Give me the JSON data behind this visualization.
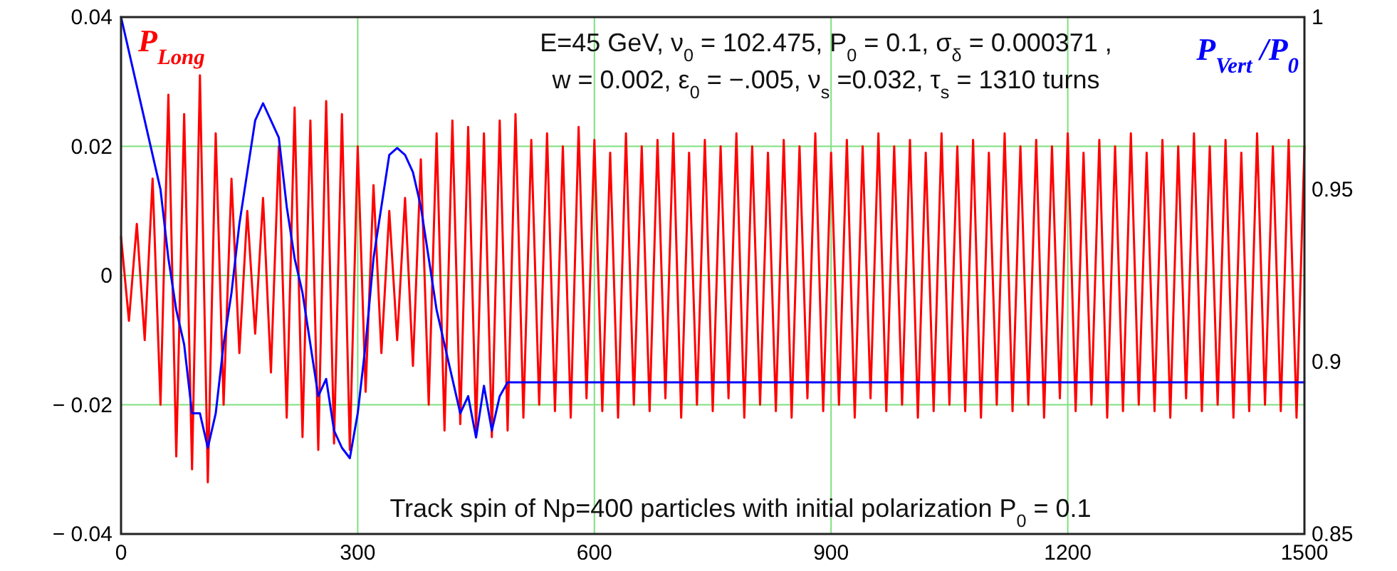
{
  "chart_data": {
    "type": "line",
    "annotations": [
      "E=45 GeV,  ν$_{0}$ = 102.475,  P$_{0}$ = 0.1,  σ$_{δ}$ = 0.000371 ,",
      "w = 0.002,  ε$_{0}$ = −.005,  ν$_{s}$ =0.032, τ$_{s}$ = 1310 turns",
      "Track spin of Np=400 particles with initial polarization P$_{0}$ = 0.1"
    ],
    "xlim": [
      0,
      1500
    ],
    "xticks": [
      0,
      300,
      600,
      900,
      1200,
      1500
    ],
    "ylim": [
      -0.04,
      0.04
    ],
    "yticks": [
      {
        "value": -0.04,
        "label": "− 0.04"
      },
      {
        "value": -0.02,
        "label": "− 0.02"
      },
      0,
      0.02,
      0.04
    ],
    "y2lim": [
      0.85,
      1
    ],
    "y2ticks": [
      0.85,
      0.9,
      0.95,
      1
    ],
    "grid": true,
    "series": [
      {
        "name": "P$_{Long}$",
        "color": "#ff0000",
        "x": [
          0,
          10,
          20,
          30,
          40,
          50,
          60,
          70,
          80,
          90,
          100,
          110,
          120,
          130,
          140,
          150,
          160,
          170,
          180,
          190,
          200,
          210,
          220,
          230,
          240,
          250,
          260,
          270,
          280,
          290,
          300,
          310,
          320,
          330,
          340,
          350,
          360,
          370,
          380,
          390,
          400,
          410,
          420,
          430,
          440,
          450,
          460,
          470,
          480,
          490,
          500,
          510,
          520,
          530,
          540,
          550,
          560,
          570,
          580,
          590,
          600,
          610,
          620,
          630,
          640,
          650,
          660,
          670,
          680,
          690,
          700,
          710,
          720,
          730,
          740,
          750,
          760,
          770,
          780,
          790,
          800,
          810,
          820,
          830,
          840,
          850,
          860,
          870,
          880,
          890,
          900,
          910,
          920,
          930,
          940,
          950,
          960,
          970,
          980,
          990,
          1000,
          1010,
          1020,
          1030,
          1040,
          1050,
          1060,
          1070,
          1080,
          1090,
          1100,
          1110,
          1120,
          1130,
          1140,
          1150,
          1160,
          1170,
          1180,
          1190,
          1200,
          1210,
          1220,
          1230,
          1240,
          1250,
          1260,
          1270,
          1280,
          1290,
          1300,
          1310,
          1320,
          1330,
          1340,
          1350,
          1360,
          1370,
          1380,
          1390,
          1400,
          1410,
          1420,
          1430,
          1440,
          1450,
          1460,
          1470,
          1480,
          1490,
          1500
        ],
        "values": [
          0.006,
          -0.007,
          0.008,
          -0.01,
          0.015,
          -0.02,
          0.028,
          -0.028,
          0.025,
          -0.03,
          0.031,
          -0.032,
          0.022,
          -0.02,
          0.015,
          -0.012,
          0.01,
          -0.009,
          0.012,
          -0.015,
          0.02,
          -0.022,
          0.026,
          -0.025,
          0.024,
          -0.027,
          0.027,
          -0.026,
          0.025,
          -0.027,
          0.02,
          -0.018,
          0.014,
          -0.012,
          0.01,
          -0.01,
          0.012,
          -0.014,
          0.018,
          -0.02,
          0.022,
          -0.024,
          0.024,
          -0.023,
          0.023,
          -0.024,
          0.022,
          -0.025,
          0.024,
          -0.024,
          0.025,
          -0.022,
          0.021,
          -0.02,
          0.022,
          -0.021,
          0.02,
          -0.022,
          0.023,
          -0.019,
          0.021,
          -0.021,
          0.019,
          -0.022,
          0.022,
          -0.02,
          0.02,
          -0.021,
          0.021,
          -0.019,
          0.022,
          -0.022,
          0.019,
          -0.02,
          0.021,
          -0.021,
          0.02,
          -0.019,
          0.022,
          -0.022,
          0.02,
          -0.02,
          0.019,
          -0.021,
          0.021,
          -0.022,
          0.02,
          -0.019,
          0.022,
          -0.021,
          0.019,
          -0.02,
          0.021,
          -0.022,
          0.02,
          -0.019,
          0.022,
          -0.021,
          0.02,
          -0.02,
          0.021,
          -0.022,
          0.019,
          -0.021,
          0.022,
          -0.02,
          0.02,
          -0.021,
          0.021,
          -0.022,
          0.019,
          -0.02,
          0.022,
          -0.021,
          0.02,
          -0.02,
          0.021,
          -0.022,
          0.02,
          -0.019,
          0.022,
          -0.021,
          0.019,
          -0.02,
          0.021,
          -0.022,
          0.02,
          -0.021,
          0.022,
          -0.02,
          0.019,
          -0.021,
          0.021,
          -0.022,
          0.02,
          -0.019,
          0.022,
          -0.021,
          0.02,
          -0.02,
          0.021,
          -0.022,
          0.019,
          -0.021,
          0.022,
          -0.02,
          0.02,
          -0.021,
          0.021,
          -0.022,
          0.02
        ]
      },
      {
        "name": "P$_{Vert}$/P$_{0}$",
        "color": "#0000ff",
        "axis": "y2",
        "x": [
          0,
          10,
          20,
          30,
          40,
          50,
          60,
          70,
          80,
          90,
          100,
          110,
          120,
          130,
          140,
          150,
          160,
          170,
          180,
          190,
          200,
          210,
          220,
          230,
          240,
          250,
          260,
          270,
          280,
          290,
          300,
          310,
          320,
          330,
          340,
          350,
          360,
          370,
          380,
          390,
          400,
          410,
          420,
          430,
          440,
          450,
          460,
          470,
          480,
          490,
          500,
          1500
        ],
        "values": [
          1.0,
          0.99,
          0.98,
          0.97,
          0.96,
          0.95,
          0.93,
          0.915,
          0.905,
          0.885,
          0.885,
          0.875,
          0.885,
          0.905,
          0.92,
          0.94,
          0.955,
          0.97,
          0.975,
          0.97,
          0.965,
          0.945,
          0.93,
          0.92,
          0.905,
          0.89,
          0.895,
          0.88,
          0.875,
          0.872,
          0.885,
          0.905,
          0.93,
          0.945,
          0.96,
          0.962,
          0.96,
          0.955,
          0.945,
          0.93,
          0.915,
          0.905,
          0.895,
          0.885,
          0.89,
          0.878,
          0.893,
          0.88,
          0.89,
          0.894,
          0.894,
          0.894
        ]
      }
    ]
  }
}
